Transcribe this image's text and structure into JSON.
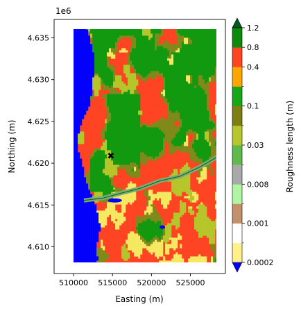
{
  "chart_data": {
    "type": "heatmap",
    "title": "",
    "xlabel": "Easting (m)",
    "ylabel": "Northing (m)",
    "y_offset_label": "1e6",
    "xlim": [
      507500,
      529500
    ],
    "ylim": [
      4606800,
      4637200
    ],
    "x_ticks": [
      510000,
      515000,
      520000,
      525000
    ],
    "x_tick_labels": [
      "510000",
      "515000",
      "520000",
      "525000"
    ],
    "y_ticks": [
      4610000,
      4615000,
      4620000,
      4625000,
      4630000,
      4635000
    ],
    "y_tick_labels": [
      "4.610",
      "4.615",
      "4.620",
      "4.625",
      "4.630",
      "4.635"
    ],
    "map_extent": {
      "x": [
        510000,
        529000
      ],
      "y": [
        4608000,
        4637000
      ]
    },
    "marker": {
      "x": 514800,
      "y": 4620800,
      "shape": "x"
    },
    "colorbar": {
      "label": "Roughness length (m)",
      "extend": "both",
      "tick_labels": [
        "0.0002",
        "0.001",
        "0.008",
        "0.03",
        "0.1",
        "0.4",
        "0.8",
        "1.2"
      ],
      "under_color": "#0000ff",
      "over_color": "#005a1f",
      "levels": [
        {
          "color": "#fff08a"
        },
        {
          "color": "#ffffff"
        },
        {
          "color": "#c4906b"
        },
        {
          "color": "#b0f5a2"
        },
        {
          "color": "#a9a9a9"
        },
        {
          "color": "#5fb94b"
        },
        {
          "color": "#b5c72a"
        },
        {
          "color": "#7e7e12"
        },
        {
          "color": "#17a718"
        },
        {
          "color": "#ffa500"
        },
        {
          "color": "#ff4423"
        },
        {
          "color": "#0c8a0c"
        }
      ]
    },
    "landcover_colors": {
      "water": "#0000ff",
      "red": "#ff4423",
      "green": "#109a10",
      "olive": "#b5c72a",
      "yellow": "#f5ea62",
      "khaki": "#7e8a1a",
      "grey_green": "#7cac7a",
      "dark_green": "#0b6e0b"
    }
  }
}
